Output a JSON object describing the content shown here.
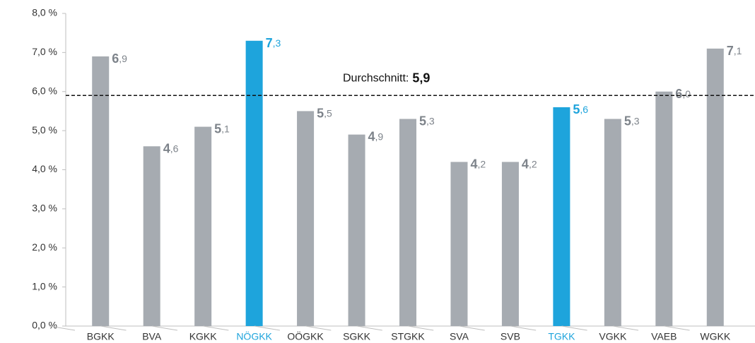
{
  "chart_data": {
    "type": "bar",
    "categories": [
      "BGKK",
      "BVA",
      "KGKK",
      "NÖGKK",
      "OÖGKK",
      "SGKK",
      "STGKK",
      "SVA",
      "SVB",
      "TGKK",
      "VGKK",
      "VAEB",
      "WGKK"
    ],
    "values": [
      6.9,
      4.6,
      5.1,
      7.3,
      5.5,
      4.9,
      5.3,
      4.2,
      4.2,
      5.6,
      5.3,
      6.0,
      7.1
    ],
    "value_labels": [
      "6,9",
      "4,6",
      "5,1",
      "7,3",
      "5,5",
      "4,9",
      "5,3",
      "4,2",
      "4,2",
      "5,6",
      "5,3",
      "6,0",
      "7,1"
    ],
    "color": "#a6abb1",
    "highlight_color": "#1ea4dc",
    "highlighted": [
      false,
      false,
      false,
      true,
      false,
      false,
      false,
      false,
      false,
      true,
      false,
      false,
      false
    ],
    "ylim": [
      0,
      8
    ],
    "yticks": [
      {
        "value": 0,
        "label": "0,0 %"
      },
      {
        "value": 1,
        "label": "1,0 %"
      },
      {
        "value": 2,
        "label": "2,0 %"
      },
      {
        "value": 3,
        "label": "3,0 %"
      },
      {
        "value": 4,
        "label": "4,0 %"
      },
      {
        "value": 5,
        "label": "5,0 %"
      },
      {
        "value": 6,
        "label": "6,0 %"
      },
      {
        "value": 7,
        "label": "7,0 %"
      },
      {
        "value": 8,
        "label": "8,0 %"
      }
    ],
    "grid": false,
    "average": {
      "label": "Durchschnitt:",
      "value": 5.9,
      "value_label": "5,9"
    }
  }
}
